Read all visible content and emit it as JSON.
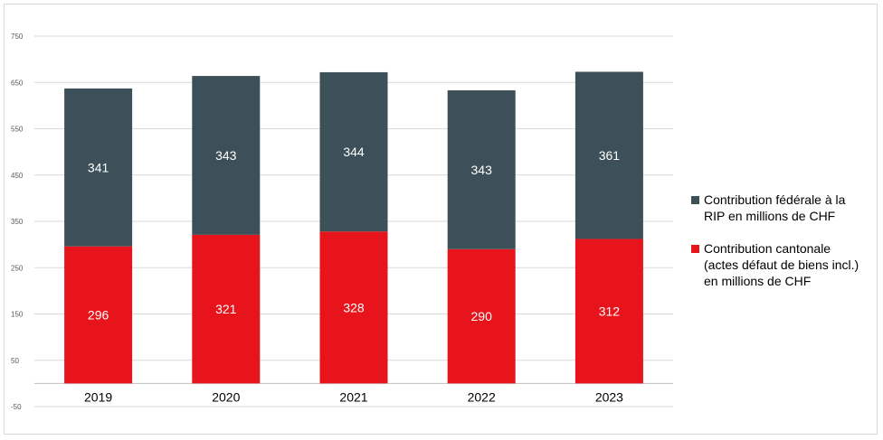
{
  "chart_data": {
    "type": "bar",
    "stacked": true,
    "categories": [
      "2019",
      "2020",
      "2021",
      "2022",
      "2023"
    ],
    "series": [
      {
        "name": "Contribution cantonale (actes défaut de biens incl.) en millions de CHF",
        "values": [
          296,
          321,
          328,
          290,
          312
        ],
        "color": "#e8141c"
      },
      {
        "name": "Contribution fédérale à la RIP en millions de CHF",
        "values": [
          341,
          343,
          344,
          343,
          361
        ],
        "color": "#3d5059"
      }
    ],
    "yticks": [
      "750",
      "650",
      "550",
      "450",
      "350",
      "250",
      "150",
      "50",
      "-50"
    ],
    "ylim": [
      -50,
      750
    ],
    "grid": true,
    "legend_position": "right"
  },
  "legend": {
    "items": [
      {
        "lines": [
          "Contribution fédérale à la",
          "RIP en millions de CHF"
        ],
        "color": "#3d5059"
      },
      {
        "lines": [
          "Contribution cantonale",
          "(actes défaut de biens incl.)",
          "en millions de CHF"
        ],
        "color": "#e8141c"
      }
    ]
  }
}
